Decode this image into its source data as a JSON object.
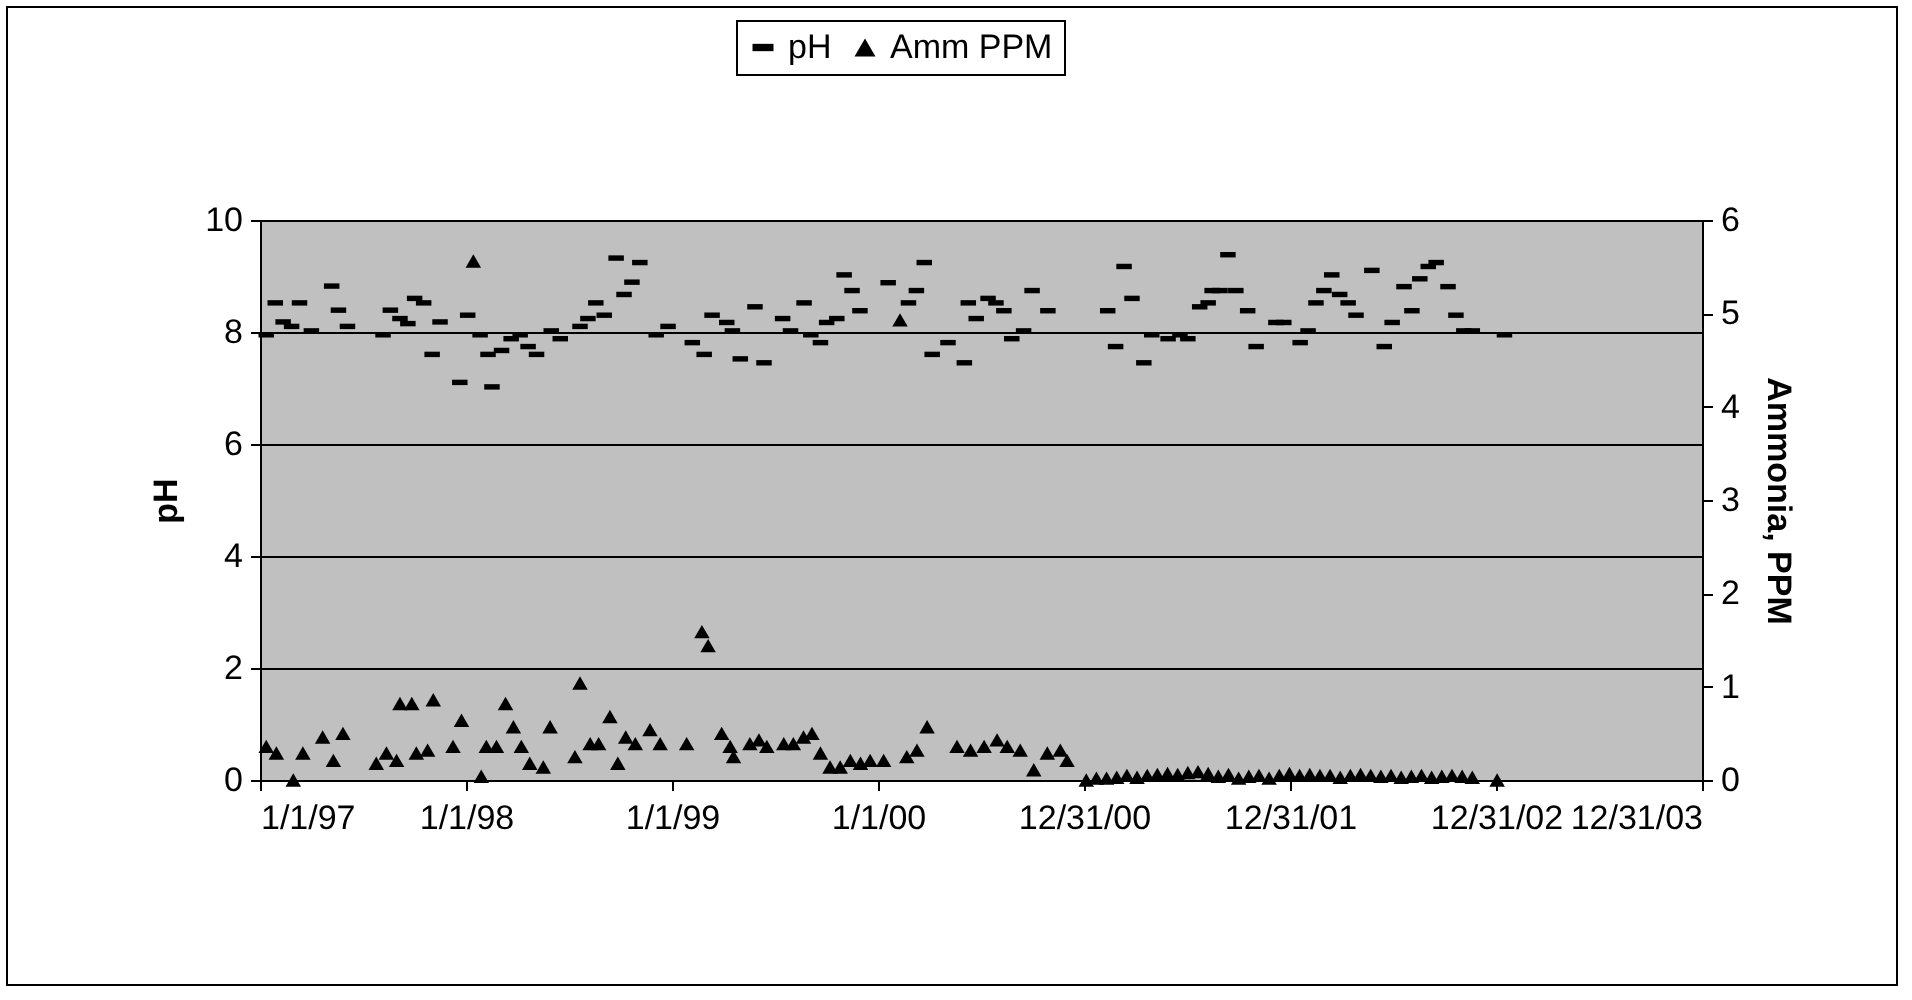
{
  "chart_data": {
    "type": "scatter",
    "xlabel": null,
    "ylabel": "pH",
    "y2label": "Ammonia, PPM",
    "xlim": [
      "1997-01-01",
      "2003-12-31"
    ],
    "xticks": [
      {
        "value": "1997-01-01",
        "label": "1/1/97"
      },
      {
        "value": "1998-01-01",
        "label": "1/1/98"
      },
      {
        "value": "1999-01-01",
        "label": "1/1/99"
      },
      {
        "value": "2000-01-01",
        "label": "1/1/00"
      },
      {
        "value": "2000-12-31",
        "label": "12/31/00"
      },
      {
        "value": "2001-12-31",
        "label": "12/31/01"
      },
      {
        "value": "2002-12-31",
        "label": "12/31/02"
      },
      {
        "value": "2003-12-31",
        "label": "12/31/03"
      }
    ],
    "ylim": [
      0,
      10
    ],
    "yticks": [
      0,
      2,
      4,
      6,
      8,
      10
    ],
    "y2lim": [
      0,
      6
    ],
    "y2ticks": [
      0,
      1,
      2,
      3,
      4,
      5,
      6
    ],
    "grid": "y",
    "legend": "top",
    "series": [
      {
        "name": "pH",
        "color": "#000000",
        "marker": "square",
        "x": [
          "1997-01-12",
          "1997-01-28",
          "1997-02-11",
          "1997-02-26",
          "1997-03-12",
          "1997-04-02",
          "1997-05-08",
          "1997-05-20",
          "1997-06-05",
          "1997-08-07",
          "1997-08-20",
          "1997-09-06",
          "1997-09-20",
          "1997-10-02",
          "1997-10-18",
          "1997-11-02",
          "1997-11-16",
          "1997-12-21",
          "1998-01-04",
          "1998-01-26",
          "1998-02-09",
          "1998-02-16",
          "1998-03-05",
          "1998-03-22",
          "1998-04-07",
          "1998-04-21",
          "1998-05-06",
          "1998-06-01",
          "1998-06-17",
          "1998-07-22",
          "1998-08-05",
          "1998-08-19",
          "1998-09-03",
          "1998-09-24",
          "1998-10-08",
          "1998-10-22",
          "1998-11-05",
          "1998-12-04",
          "1998-12-25",
          "1999-02-06",
          "1999-02-27",
          "1999-03-13",
          "1999-04-08",
          "1999-04-18",
          "1999-05-02",
          "1999-05-28",
          "1999-06-13",
          "1999-07-16",
          "1999-07-30",
          "1999-08-23",
          "1999-09-04",
          "1999-09-21",
          "1999-10-02",
          "1999-10-20",
          "1999-11-02",
          "1999-11-16",
          "1999-11-30",
          "2000-01-19",
          "2000-02-24",
          "2000-03-09",
          "2000-03-23",
          "2000-04-06",
          "2000-05-04",
          "2000-06-02",
          "2000-06-09",
          "2000-06-23",
          "2000-07-14",
          "2000-07-28",
          "2000-08-11",
          "2000-08-25",
          "2000-09-15",
          "2000-09-30",
          "2000-10-28",
          "2001-02-11",
          "2001-02-25",
          "2001-03-12",
          "2001-03-26",
          "2001-04-16",
          "2001-04-30",
          "2001-05-29",
          "2001-06-19",
          "2001-07-03",
          "2001-07-24",
          "2001-08-08",
          "2001-08-15",
          "2001-08-29",
          "2001-09-12",
          "2001-09-26",
          "2001-10-17",
          "2001-11-01",
          "2001-12-06",
          "2001-12-20",
          "2002-01-18",
          "2002-02-01",
          "2002-02-15",
          "2002-03-01",
          "2002-03-15",
          "2002-03-29",
          "2002-04-13",
          "2002-04-27",
          "2002-05-25",
          "2002-06-16",
          "2002-06-30",
          "2002-07-21",
          "2002-08-04",
          "2002-08-18",
          "2002-09-02",
          "2002-09-16",
          "2002-10-07",
          "2002-10-21",
          "2002-11-04",
          "2002-11-19",
          "2003-01-15"
        ],
        "values": [
          7.95,
          8.52,
          8.18,
          8.1,
          8.52,
          8.02,
          8.82,
          8.39,
          8.1,
          7.95,
          8.39,
          8.24,
          8.15,
          8.6,
          8.52,
          7.6,
          8.18,
          7.1,
          8.3,
          7.95,
          7.6,
          7.02,
          7.67,
          7.88,
          7.95,
          7.74,
          7.6,
          8.02,
          7.88,
          8.1,
          8.24,
          8.52,
          8.3,
          9.32,
          8.67,
          8.89,
          9.24,
          7.95,
          8.1,
          7.81,
          7.6,
          8.3,
          8.17,
          8.02,
          7.52,
          8.45,
          7.45,
          8.24,
          8.02,
          8.52,
          7.95,
          7.81,
          8.17,
          8.24,
          9.02,
          8.74,
          8.38,
          8.88,
          8.52,
          8.74,
          9.24,
          7.6,
          7.81,
          7.45,
          8.52,
          8.24,
          8.6,
          8.52,
          8.38,
          7.88,
          8.02,
          8.74,
          8.38,
          8.38,
          7.74,
          9.17,
          8.6,
          7.45,
          7.95,
          7.88,
          7.95,
          7.88,
          8.45,
          8.52,
          8.74,
          8.74,
          9.38,
          8.74,
          8.38,
          7.74,
          8.17,
          8.17,
          7.81,
          8.02,
          8.52,
          8.74,
          9.02,
          8.67,
          8.52,
          8.3,
          9.1,
          7.74,
          8.17,
          8.81,
          8.38,
          8.95,
          9.17,
          9.24,
          8.81,
          8.3,
          8.02,
          8.02,
          7.95
        ]
      },
      {
        "name": "Amm PPM",
        "color": "#000000",
        "marker": "triangle",
        "axis": "y2",
        "x": [
          "1997-01-12",
          "1997-01-30",
          "1997-03-01",
          "1997-03-18",
          "1997-04-22",
          "1997-05-11",
          "1997-05-28",
          "1997-07-26",
          "1997-08-13",
          "1997-08-31",
          "1997-09-06",
          "1997-09-27",
          "1997-10-05",
          "1997-10-25",
          "1997-11-04",
          "1997-12-09",
          "1997-12-24",
          "1998-01-14",
          "1998-01-28",
          "1998-02-06",
          "1998-02-24",
          "1998-03-12",
          "1998-03-26",
          "1998-04-09",
          "1998-04-24",
          "1998-05-18",
          "1998-05-30",
          "1998-07-13",
          "1998-07-22",
          "1998-08-09",
          "1998-08-24",
          "1998-09-13",
          "1998-09-27",
          "1998-10-11",
          "1998-10-28",
          "1998-11-23",
          "1998-12-11",
          "1999-01-27",
          "1999-02-23",
          "1999-03-06",
          "1999-03-30",
          "1999-04-14",
          "1999-04-20",
          "1999-05-19",
          "1999-06-04",
          "1999-06-18",
          "1999-07-18",
          "1999-08-04",
          "1999-08-22",
          "1999-09-06",
          "1999-09-21",
          "1999-10-08",
          "1999-10-26",
          "1999-11-13",
          "1999-12-01",
          "1999-12-18",
          "2000-01-11",
          "2000-02-09",
          "2000-02-21",
          "2000-03-10",
          "2000-03-28",
          "2000-05-20",
          "2000-06-13",
          "2000-07-07",
          "2000-07-30",
          "2000-08-17",
          "2000-09-09",
          "2000-10-03",
          "2000-10-27",
          "2000-11-19",
          "2000-12-01",
          "2001-01-04",
          "2001-01-22",
          "2001-02-09",
          "2001-02-27",
          "2001-03-17",
          "2001-04-04",
          "2001-04-22",
          "2001-05-10",
          "2001-05-28",
          "2001-06-15",
          "2001-07-03",
          "2001-07-21",
          "2001-08-08",
          "2001-08-26",
          "2001-09-13",
          "2001-10-01",
          "2001-10-19",
          "2001-11-06",
          "2001-11-24",
          "2001-12-12",
          "2001-12-30",
          "2002-01-17",
          "2002-02-04",
          "2002-02-22",
          "2002-03-12",
          "2002-03-30",
          "2002-04-17",
          "2002-05-05",
          "2002-05-23",
          "2002-06-10",
          "2002-06-28",
          "2002-07-16",
          "2002-08-03",
          "2002-08-21",
          "2002-09-08",
          "2002-09-26",
          "2002-10-14",
          "2002-11-01",
          "2002-11-19",
          "2003-01-02"
        ],
        "values": [
          0.36,
          0.29,
          0,
          0.29,
          0.46,
          0.21,
          0.5,
          0.18,
          0.29,
          0.21,
          0.82,
          0.82,
          0.29,
          0.32,
          0.86,
          0.36,
          0.64,
          5.56,
          0.04,
          0.36,
          0.36,
          0.82,
          0.57,
          0.36,
          0.18,
          0.14,
          0.57,
          0.25,
          1.04,
          0.39,
          0.39,
          0.68,
          0.18,
          0.46,
          0.39,
          0.54,
          0.39,
          0.39,
          1.59,
          1.44,
          0.5,
          0.36,
          0.25,
          0.39,
          0.43,
          0.36,
          0.39,
          0.39,
          0.46,
          0.5,
          0.29,
          0.14,
          0.14,
          0.21,
          0.18,
          0.21,
          0.21,
          4.93,
          0.25,
          0.32,
          0.57,
          0.36,
          0.32,
          0.36,
          0.43,
          0.36,
          0.32,
          0.11,
          0.29,
          0.32,
          0.21,
          0,
          0.02,
          0.02,
          0.03,
          0.05,
          0.03,
          0.05,
          0.06,
          0.07,
          0.06,
          0.08,
          0.09,
          0.07,
          0.04,
          0.06,
          0.02,
          0.04,
          0.05,
          0.02,
          0.05,
          0.07,
          0.05,
          0.06,
          0.05,
          0.05,
          0.03,
          0.05,
          0.06,
          0.05,
          0.04,
          0.05,
          0.03,
          0.04,
          0.05,
          0.03,
          0.04,
          0.05,
          0.04,
          0.03,
          0
        ]
      }
    ]
  }
}
